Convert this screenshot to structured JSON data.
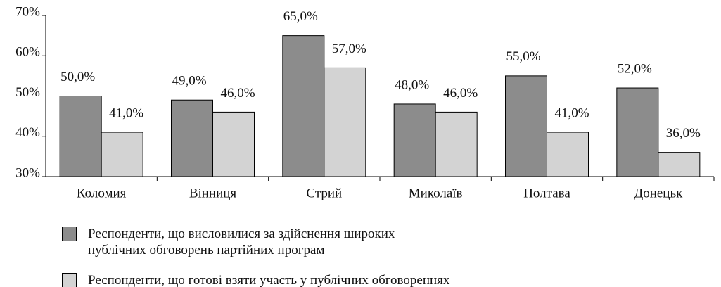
{
  "chart_data": {
    "type": "bar",
    "categories": [
      "Коломия",
      "Вінниця",
      "Стрий",
      "Миколаїв",
      "Полтава",
      "Донецьк"
    ],
    "series": [
      {
        "name": "Респонденти, що висловилися за здійснення широких публічних обговорень партійних програм",
        "color": "#8c8c8c",
        "values": [
          50,
          49,
          65,
          48,
          55,
          52
        ],
        "value_labels": [
          "50,0%",
          "49,0%",
          "65,0%",
          "48,0%",
          "55,0%",
          "52,0%"
        ]
      },
      {
        "name": "Респонденти, що готові взяти участь у публічних обговореннях",
        "color": "#d3d3d3",
        "values": [
          41,
          46,
          57,
          46,
          41,
          36
        ],
        "value_labels": [
          "41,0%",
          "46,0%",
          "57,0%",
          "46,0%",
          "41,0%",
          "36,0%"
        ]
      }
    ],
    "ylim": [
      30,
      70
    ],
    "yticks": [
      {
        "value": 30,
        "label": "30%"
      },
      {
        "value": 40,
        "label": "40%"
      },
      {
        "value": 50,
        "label": "50%"
      },
      {
        "value": 60,
        "label": "60%"
      },
      {
        "value": 70,
        "label": "70%"
      }
    ],
    "grid": false
  }
}
